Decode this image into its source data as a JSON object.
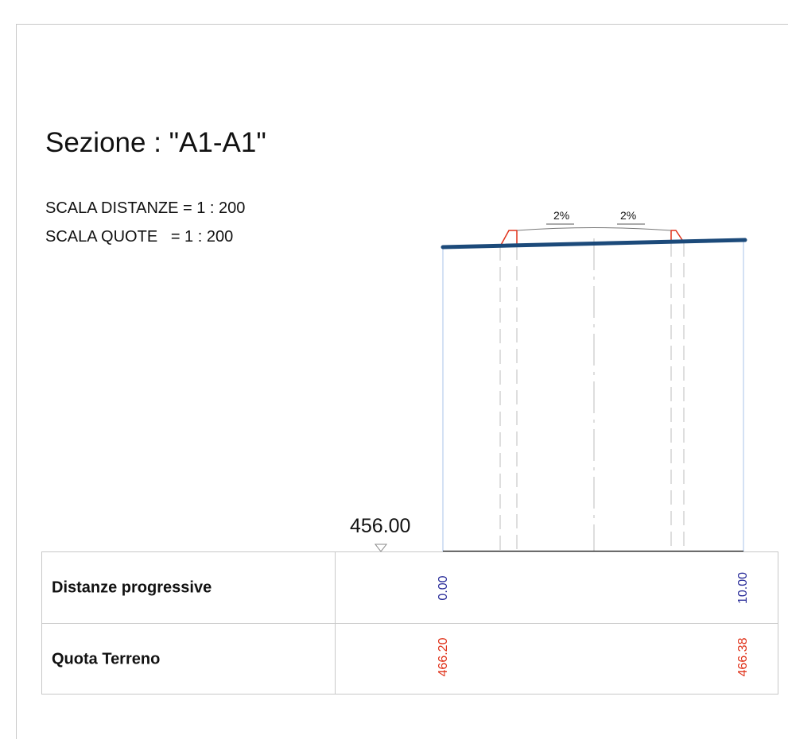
{
  "title": "Sezione : \"A1-A1\"",
  "scales": {
    "distance": "SCALA DISTANZE = 1 : 200",
    "elevation": "SCALA QUOTE   = 1 : 200"
  },
  "section": {
    "slope_left": "2%",
    "slope_right": "2%",
    "datum_elevation": "456.00"
  },
  "table": {
    "rows": [
      {
        "label": "Distanze progressive",
        "values": [
          "0.00",
          "10.00"
        ],
        "color": "#2b2e9a"
      },
      {
        "label": "Quota Terreno",
        "values": [
          "466.20",
          "466.38"
        ],
        "color": "#e0321a"
      }
    ]
  },
  "colors": {
    "terrain_line": "#1c4a7a",
    "profile_line": "#e0321a",
    "station_line": "#a9c3e8",
    "axis_line": "#c8c8c8",
    "baseline": "#000000"
  }
}
